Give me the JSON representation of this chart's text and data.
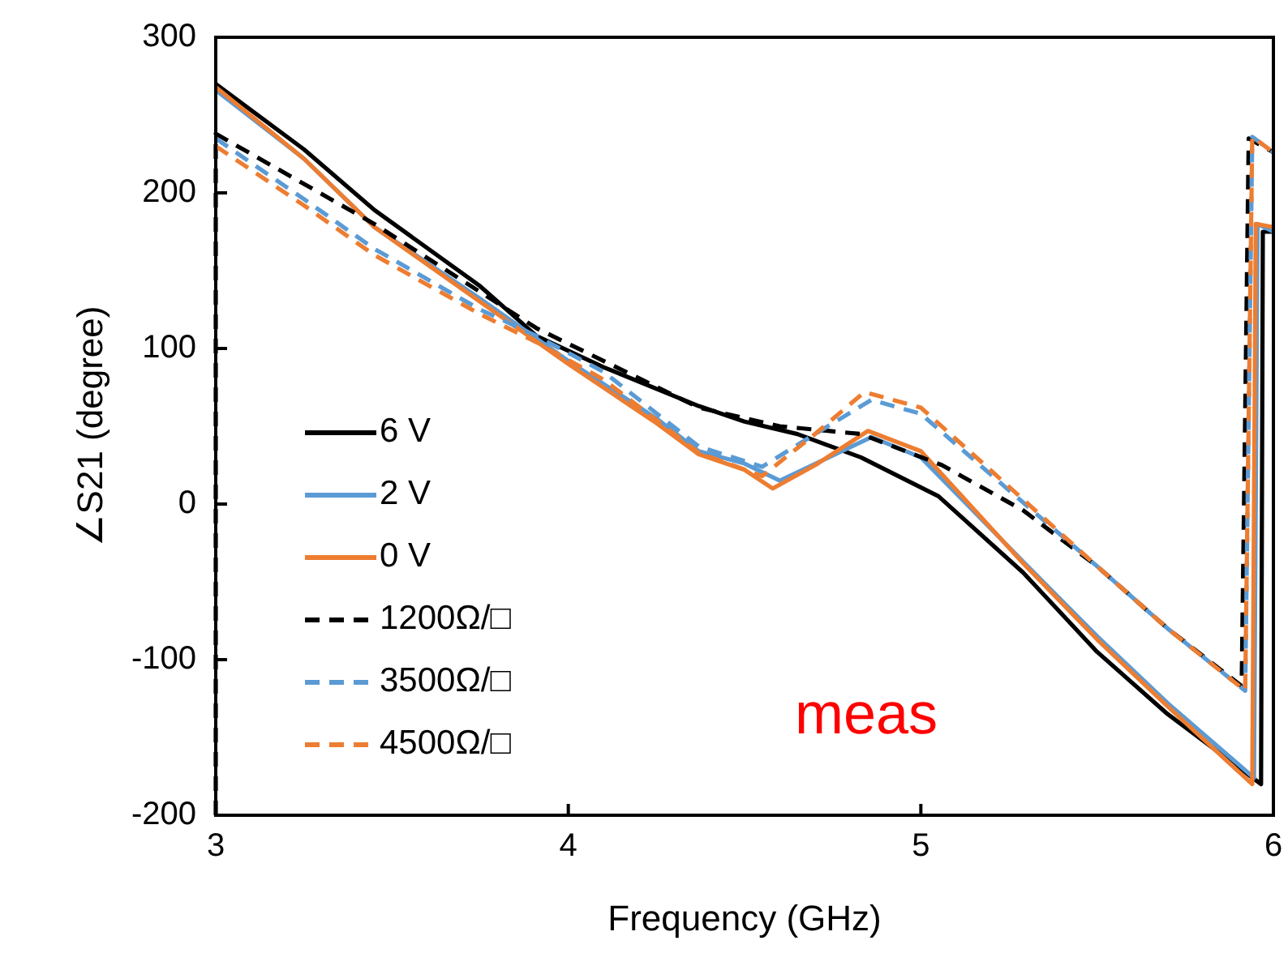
{
  "chart_data": {
    "type": "line",
    "xlabel": "Frequency (GHz)",
    "ylabel": "∠S21 (degree)",
    "xlim": [
      3,
      6
    ],
    "ylim": [
      -200,
      300
    ],
    "xticks": [
      3,
      4,
      5,
      6
    ],
    "yticks": [
      -200,
      -100,
      0,
      100,
      200,
      300
    ],
    "grid": false,
    "legend": "bottom left",
    "annotations": [
      "meas"
    ],
    "series": [
      {
        "name": "6 V",
        "color": "#000000",
        "line_style": "solid",
        "x": [
          3,
          3.25,
          3.45,
          3.75,
          3.91,
          4.1,
          4.37,
          4.5,
          4.65,
          4.83,
          5.05,
          5.29,
          5.5,
          5.7,
          5.965,
          5.97,
          6
        ],
        "values": [
          270,
          228,
          189,
          140,
          108,
          88,
          63,
          53,
          45,
          30,
          5,
          -44,
          -95,
          -135,
          -180,
          175,
          175
        ]
      },
      {
        "name": "2 V",
        "color": "#5b9bd5",
        "line_style": "solid",
        "x": [
          3,
          3.25,
          3.45,
          3.75,
          4,
          4.25,
          4.37,
          4.5,
          4.6,
          4.72,
          4.86,
          5,
          5.29,
          5.5,
          5.7,
          5.945,
          5.955,
          6
        ],
        "values": [
          266,
          222,
          178,
          132,
          92,
          55,
          34,
          26,
          15,
          28,
          43,
          30,
          -37,
          -85,
          -128,
          -176,
          180,
          175
        ]
      },
      {
        "name": "0 V",
        "color": "#ed7d31",
        "line_style": "solid",
        "x": [
          3,
          3.25,
          3.45,
          3.75,
          4,
          4.25,
          4.37,
          4.5,
          4.58,
          4.7,
          4.85,
          5,
          5.29,
          5.5,
          5.7,
          5.94,
          5.95,
          6
        ],
        "values": [
          268,
          222,
          178,
          130,
          90,
          52,
          32,
          22,
          10,
          25,
          47,
          34,
          -38,
          -87,
          -130,
          -180,
          180,
          178
        ]
      },
      {
        "name": "1200Ω/□",
        "color": "#000000",
        "line_style": "dashed",
        "x": [
          3,
          3,
          3.45,
          3.91,
          4.1,
          4.37,
          4.6,
          4.83,
          5.06,
          5.29,
          5.5,
          5.7,
          5.91,
          5.93,
          6
        ],
        "values": [
          -200,
          238,
          180,
          113,
          92,
          62,
          50,
          45,
          25,
          -4,
          -40,
          -80,
          -117,
          235,
          226
        ]
      },
      {
        "name": "3500Ω/□",
        "color": "#5b9bd5",
        "line_style": "dashed",
        "x": [
          3,
          3.25,
          3.45,
          3.75,
          3.91,
          4.1,
          4.37,
          4.55,
          4.7,
          4.86,
          5,
          5.29,
          5.5,
          5.7,
          5.92,
          5.94,
          6
        ],
        "values": [
          235,
          196,
          164,
          125,
          108,
          85,
          37,
          24,
          45,
          67,
          58,
          1,
          -40,
          -80,
          -120,
          236,
          226
        ]
      },
      {
        "name": "4500Ω/□",
        "color": "#ed7d31",
        "line_style": "dashed",
        "x": [
          3,
          3.25,
          3.45,
          3.75,
          3.91,
          4.1,
          4.37,
          4.55,
          4.7,
          4.84,
          5,
          5.29,
          5.5,
          5.7,
          5.92,
          5.94,
          6
        ],
        "values": [
          230,
          192,
          160,
          122,
          104,
          80,
          33,
          18,
          45,
          72,
          62,
          3,
          -40,
          -80,
          -120,
          236,
          226
        ]
      }
    ]
  }
}
